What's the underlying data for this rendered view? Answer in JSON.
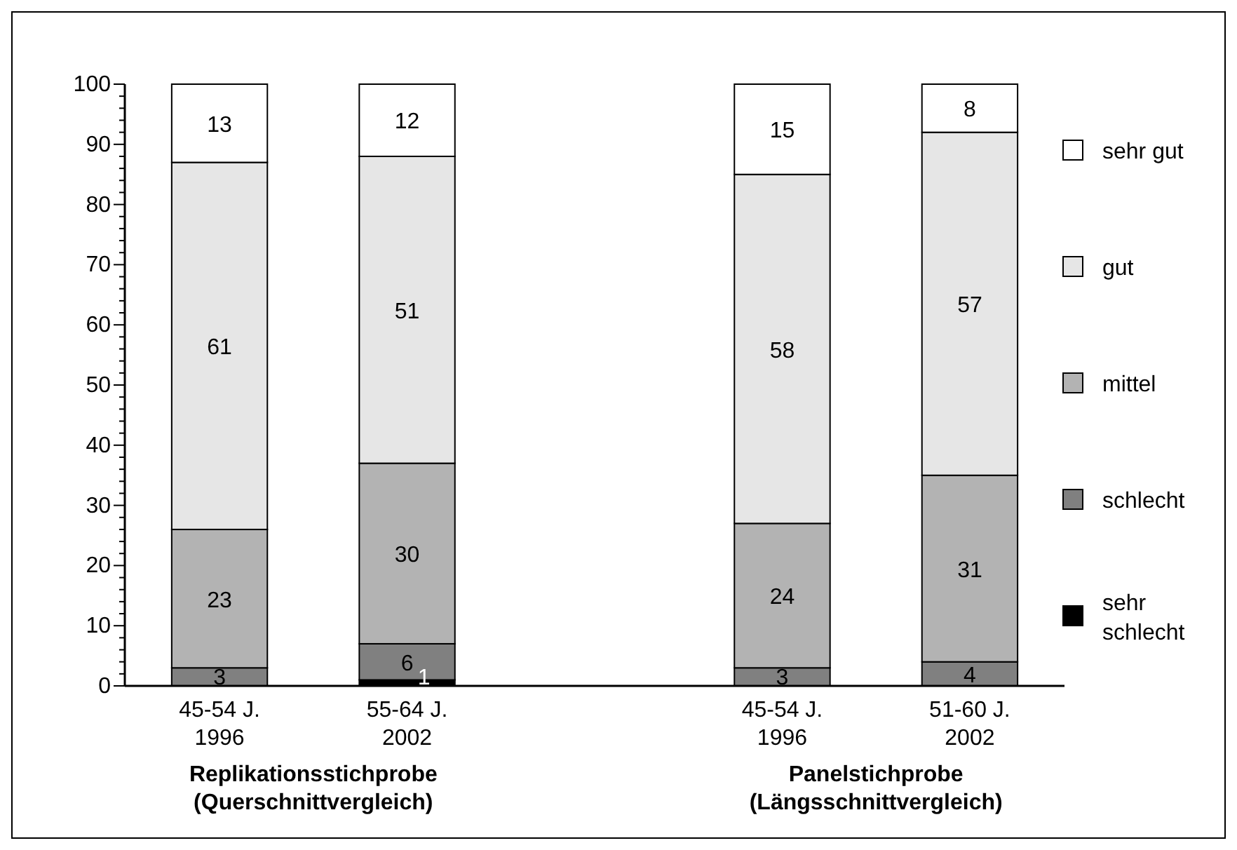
{
  "chart_data": {
    "type": "bar",
    "stacked": true,
    "categories": [
      "45-54 J.\n1996",
      "55-64 J.\n2002",
      null,
      "45-54 J.\n1996",
      "51-60 J.\n2002"
    ],
    "series": [
      {
        "name": "sehr schlecht",
        "color": "#000000",
        "values": [
          null,
          1,
          null,
          null,
          null
        ],
        "value_labels": [
          null,
          "1",
          null,
          null,
          null
        ]
      },
      {
        "name": "schlecht",
        "color": "#808080",
        "values": [
          3,
          6,
          null,
          3,
          4
        ],
        "value_labels": [
          "3",
          "6",
          null,
          "3",
          "4"
        ]
      },
      {
        "name": "mittel",
        "color": "#b3b3b3",
        "values": [
          23,
          30,
          null,
          24,
          31
        ],
        "value_labels": [
          "23",
          "30",
          null,
          "24",
          "31"
        ]
      },
      {
        "name": "gut",
        "color": "#e6e6e6",
        "values": [
          61,
          51,
          null,
          58,
          57
        ],
        "value_labels": [
          "61",
          "51",
          null,
          "58",
          "57"
        ]
      },
      {
        "name": "sehr gut",
        "color": "#ffffff",
        "values": [
          13,
          12,
          null,
          15,
          8
        ],
        "value_labels": [
          "13",
          "12",
          null,
          "15",
          "8"
        ]
      }
    ],
    "ylim": [
      0,
      100
    ],
    "yticks": [
      0,
      {
        "value": 2,
        "label": null
      },
      {
        "value": 4,
        "label": null
      },
      {
        "value": 6,
        "label": null
      },
      {
        "value": 8,
        "label": null
      },
      10,
      {
        "value": 12,
        "label": null
      },
      {
        "value": 14,
        "label": null
      },
      {
        "value": 16,
        "label": null
      },
      {
        "value": 18,
        "label": null
      },
      20,
      {
        "value": 22,
        "label": null
      },
      {
        "value": 24,
        "label": null
      },
      {
        "value": 26,
        "label": null
      },
      {
        "value": 28,
        "label": null
      },
      30,
      {
        "value": 32,
        "label": null
      },
      {
        "value": 34,
        "label": null
      },
      {
        "value": 36,
        "label": null
      },
      {
        "value": 38,
        "label": null
      },
      40,
      {
        "value": 42,
        "label": null
      },
      {
        "value": 44,
        "label": null
      },
      {
        "value": 46,
        "label": null
      },
      {
        "value": 48,
        "label": null
      },
      50,
      {
        "value": 52,
        "label": null
      },
      {
        "value": 54,
        "label": null
      },
      {
        "value": 56,
        "label": null
      },
      {
        "value": 58,
        "label": null
      },
      60,
      {
        "value": 62,
        "label": null
      },
      {
        "value": 64,
        "label": null
      },
      {
        "value": 66,
        "label": null
      },
      {
        "value": 68,
        "label": null
      },
      70,
      {
        "value": 72,
        "label": null
      },
      {
        "value": 74,
        "label": null
      },
      {
        "value": 76,
        "label": null
      },
      {
        "value": 78,
        "label": null
      },
      80,
      {
        "value": 82,
        "label": null
      },
      {
        "value": 84,
        "label": null
      },
      {
        "value": 86,
        "label": null
      },
      {
        "value": 88,
        "label": null
      },
      90,
      {
        "value": 92,
        "label": null
      },
      {
        "value": 94,
        "label": null
      },
      {
        "value": 96,
        "label": null
      },
      {
        "value": 98,
        "label": null
      },
      100
    ],
    "legend": "right",
    "annotations": [
      "Replikationsstichprobe\n(Querschnittvergleich)",
      "Panelstichprobe\n(Längsschnittvergleich)"
    ]
  }
}
